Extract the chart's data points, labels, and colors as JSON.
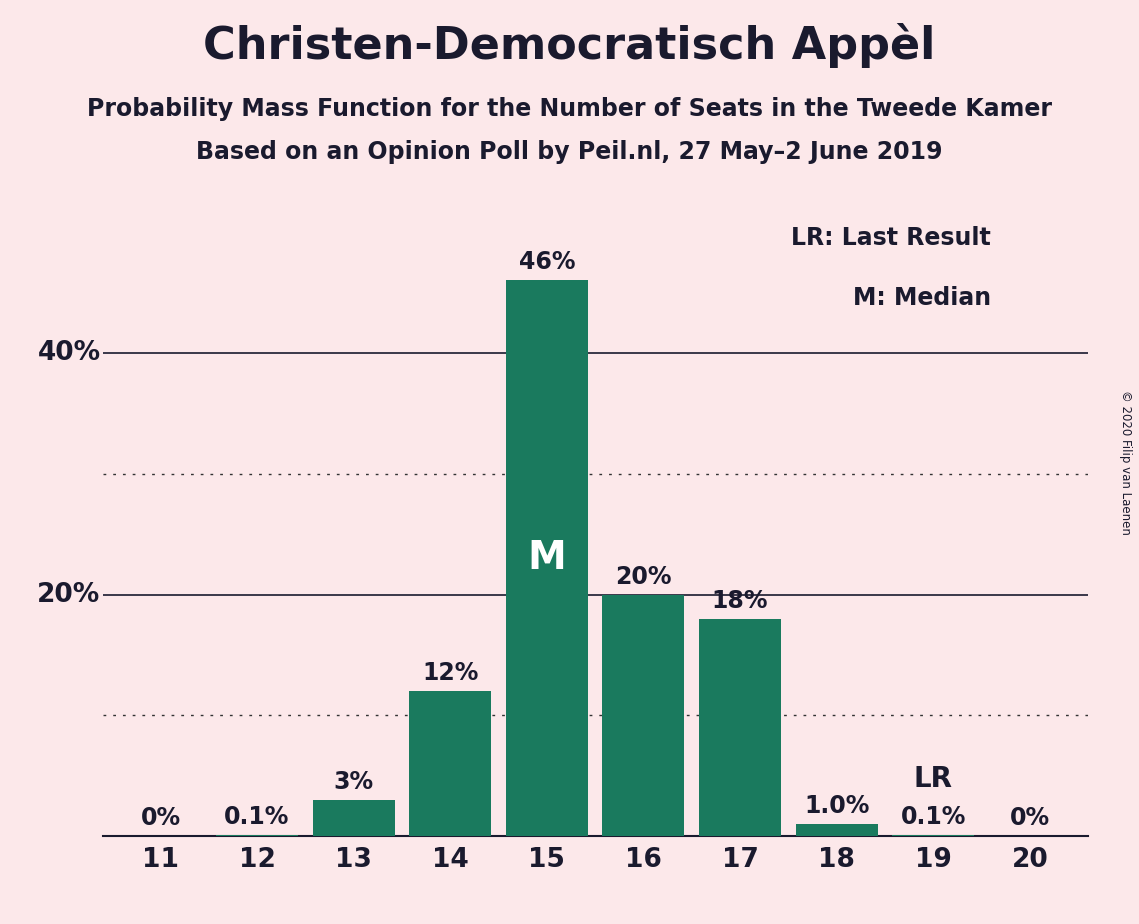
{
  "title": "Christen-Democratisch Appèl",
  "subtitle1": "Probability Mass Function for the Number of Seats in the Tweede Kamer",
  "subtitle2": "Based on an Opinion Poll by Peil.nl, 27 May–2 June 2019",
  "copyright": "© 2020 Filip van Laenen",
  "categories": [
    11,
    12,
    13,
    14,
    15,
    16,
    17,
    18,
    19,
    20
  ],
  "values": [
    0.0,
    0.1,
    3.0,
    12.0,
    46.0,
    20.0,
    18.0,
    1.0,
    0.1,
    0.0
  ],
  "bar_labels": [
    "0%",
    "0.1%",
    "3%",
    "12%",
    "46%",
    "20%",
    "18%",
    "1.0%",
    "0.1%",
    "0%"
  ],
  "bar_color": "#1a7a5e",
  "background_color": "#fce8ea",
  "text_color": "#1a1a2e",
  "ylim": [
    0,
    52
  ],
  "median_seat": 15,
  "lr_seat": 19,
  "legend_lr": "LR: Last Result",
  "legend_m": "M: Median",
  "title_fontsize": 32,
  "subtitle_fontsize": 17,
  "tick_fontsize": 19,
  "legend_fontsize": 17,
  "bar_label_fontsize": 17,
  "ylabel_fontsize": 19,
  "m_fontsize": 28
}
